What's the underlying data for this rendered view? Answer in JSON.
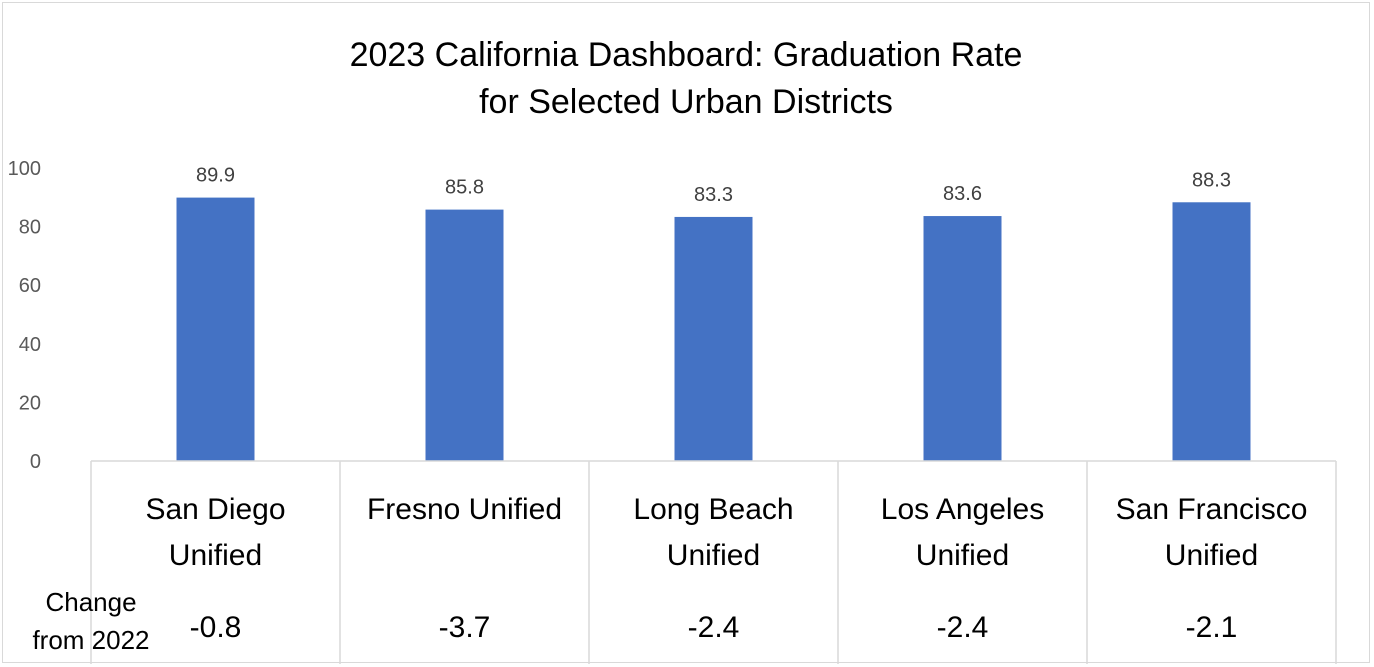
{
  "chart_data": {
    "type": "bar",
    "title_lines": [
      "2023 California Dashboard: Graduation Rate",
      "for Selected Urban Districts"
    ],
    "categories": [
      [
        "San Diego",
        "Unified"
      ],
      [
        "Fresno Unified"
      ],
      [
        "Long Beach",
        "Unified"
      ],
      [
        "Los Angeles",
        "Unified"
      ],
      [
        "San Francisco",
        "Unified"
      ]
    ],
    "values": [
      89.9,
      85.8,
      83.3,
      83.6,
      88.3
    ],
    "value_labels": [
      "89.9",
      "85.8",
      "83.3",
      "83.6",
      "88.3"
    ],
    "change_row_label": [
      "Change",
      "from 2022"
    ],
    "changes": [
      "-0.8",
      "-3.7",
      "-2.4",
      "-2.4",
      "-2.1"
    ],
    "yticks": [
      "0",
      "20",
      "40",
      "60",
      "80",
      "100"
    ],
    "ylim": [
      0,
      100
    ],
    "grid": false,
    "legend": "none",
    "bar_color": "#4472C4"
  }
}
